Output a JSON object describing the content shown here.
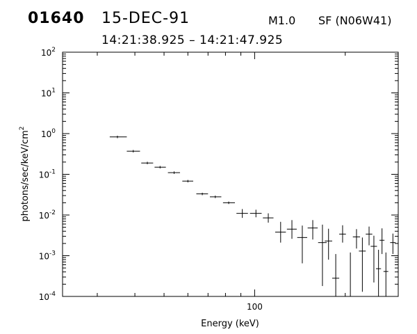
{
  "header": {
    "event_id": "01640",
    "date": "15-DEC-91",
    "flare_class": "M1.0",
    "location": "SF (N06W41)",
    "time_range": "14:21:38.925 – 14:21:47.925"
  },
  "chart_data": {
    "type": "scatter",
    "title": "",
    "xlabel": "Energy (keV)",
    "ylabel": "photons/sec/keV/cm²",
    "xscale": "log",
    "yscale": "log",
    "xlim": [
      23,
      300
    ],
    "ylim": [
      0.0001,
      100
    ],
    "grid": false,
    "legend": "none",
    "x_tick_labels": [
      {
        "value": 100,
        "label": "100"
      }
    ],
    "y_tick_labels": [
      {
        "value": 0.0001,
        "base": "10",
        "exp": "-4"
      },
      {
        "value": 0.001,
        "base": "10",
        "exp": "-3"
      },
      {
        "value": 0.01,
        "base": "10",
        "exp": "-2"
      },
      {
        "value": 0.1,
        "base": "10",
        "exp": "-1"
      },
      {
        "value": 1,
        "base": "10",
        "exp": "0"
      },
      {
        "value": 10,
        "base": "10",
        "exp": "1"
      },
      {
        "value": 100,
        "base": "10",
        "exp": "2"
      }
    ],
    "points": [
      {
        "x": 35.0,
        "x_lo": 33.0,
        "x_hi": 37.6,
        "y": 0.83
      },
      {
        "x": 39.5,
        "x_lo": 37.6,
        "x_hi": 41.6,
        "y": 0.37
      },
      {
        "x": 44.0,
        "x_lo": 42.0,
        "x_hi": 46.0,
        "y": 0.19
      },
      {
        "x": 48.5,
        "x_lo": 46.5,
        "x_hi": 50.7,
        "y": 0.15
      },
      {
        "x": 54.0,
        "x_lo": 51.5,
        "x_hi": 56.5,
        "y": 0.11
      },
      {
        "x": 60.0,
        "x_lo": 57.5,
        "x_hi": 62.5,
        "y": 0.068
      },
      {
        "x": 67.0,
        "x_lo": 64.0,
        "x_hi": 70.0,
        "y": 0.033
      },
      {
        "x": 74.0,
        "x_lo": 71.0,
        "x_hi": 77.5,
        "y": 0.028
      },
      {
        "x": 82.0,
        "x_lo": 78.5,
        "x_hi": 86.0,
        "y": 0.02
      },
      {
        "x": 91.0,
        "x_lo": 87.0,
        "x_hi": 95.0,
        "y": 0.011,
        "y_lo": 0.0085,
        "y_hi": 0.014
      },
      {
        "x": 101.0,
        "x_lo": 96.5,
        "x_hi": 105.5,
        "y": 0.011,
        "y_lo": 0.0088,
        "y_hi": 0.0135
      },
      {
        "x": 111.0,
        "x_lo": 106.5,
        "x_hi": 115.5,
        "y": 0.0085,
        "y_lo": 0.0065,
        "y_hi": 0.011
      },
      {
        "x": 122.0,
        "x_lo": 117.0,
        "x_hi": 127.0,
        "y": 0.0038,
        "y_lo": 0.0021,
        "y_hi": 0.0068
      },
      {
        "x": 133.0,
        "x_lo": 128.0,
        "x_hi": 138.0,
        "y": 0.0045,
        "y_lo": 0.0026,
        "y_hi": 0.0075
      },
      {
        "x": 144.0,
        "x_lo": 138.5,
        "x_hi": 149.5,
        "y": 0.0028,
        "y_lo": 0.00065,
        "y_hi": 0.0055
      },
      {
        "x": 156.0,
        "x_lo": 150.0,
        "x_hi": 162.0,
        "y": 0.0048,
        "y_lo": 0.0025,
        "y_hi": 0.0075
      },
      {
        "x": 168.0,
        "x_lo": 162.5,
        "x_hi": 173.5,
        "y": 0.0021,
        "y_lo": 0.00018,
        "y_hi": 0.0058
      },
      {
        "x": 176.0,
        "x_lo": 171.0,
        "x_hi": 181.0,
        "y": 0.0023,
        "y_lo": 0.0008,
        "y_hi": 0.0046
      },
      {
        "x": 186.0,
        "x_lo": 181.0,
        "x_hi": 191.0,
        "y": 0.00028,
        "y_lo": 0.0001,
        "y_hi": 0.0011
      },
      {
        "x": 196.0,
        "x_lo": 191.0,
        "x_hi": 201.0,
        "y": 0.0034,
        "y_lo": 0.0021,
        "y_hi": 0.0056
      },
      {
        "x": 208.0,
        "x_lo": 202.0,
        "x_hi": 214.0,
        "y": 0.0001,
        "y_lo": 0.0001,
        "y_hi": 0.0012
      },
      {
        "x": 218.0,
        "x_lo": 212.0,
        "x_hi": 224.0,
        "y": 0.0029,
        "y_lo": 0.0015,
        "y_hi": 0.0045
      },
      {
        "x": 228.0,
        "x_lo": 222.0,
        "x_hi": 234.0,
        "y": 0.0013,
        "y_lo": 0.00013,
        "y_hi": 0.0028
      },
      {
        "x": 240.0,
        "x_lo": 234.0,
        "x_hi": 246.0,
        "y": 0.0034,
        "y_lo": 0.0018,
        "y_hi": 0.0052
      },
      {
        "x": 249.0,
        "x_lo": 243.0,
        "x_hi": 255.0,
        "y": 0.0017,
        "y_lo": 0.00022,
        "y_hi": 0.0031
      },
      {
        "x": 258.0,
        "x_lo": 253.0,
        "x_hi": 263.0,
        "y": 0.00048,
        "y_lo": 0.0001,
        "y_hi": 0.0014
      },
      {
        "x": 265.0,
        "x_lo": 260.0,
        "x_hi": 270.0,
        "y": 0.0024,
        "y_lo": 0.0011,
        "y_hi": 0.0047
      },
      {
        "x": 273.0,
        "x_lo": 268.0,
        "x_hi": 278.0,
        "y": 0.00041,
        "y_lo": 0.0001,
        "y_hi": 0.0012
      },
      {
        "x": 288.0,
        "x_lo": 282.0,
        "x_hi": 294.0,
        "y": 0.0021,
        "y_lo": 0.0011,
        "y_hi": 0.0035
      }
    ]
  }
}
